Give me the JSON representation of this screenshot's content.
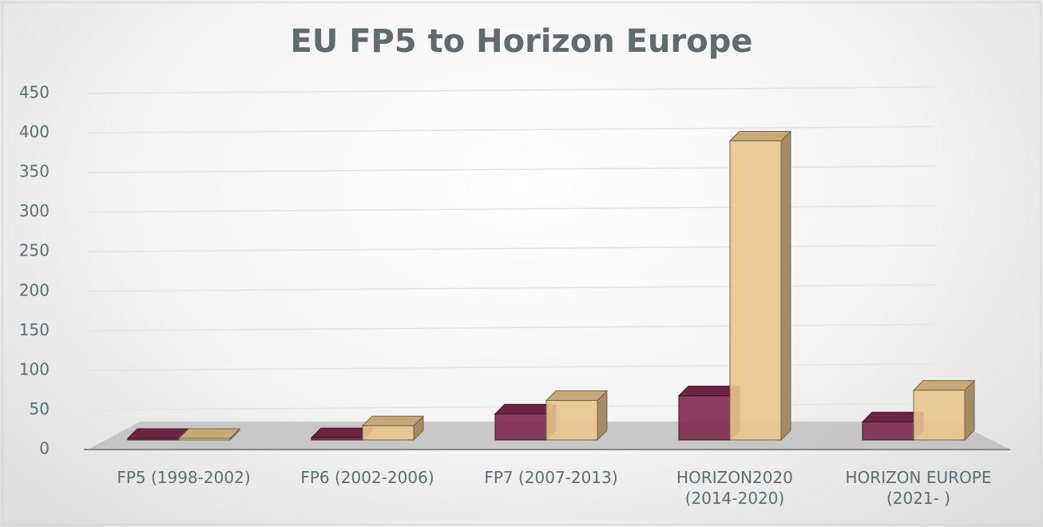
{
  "chart_data": {
    "type": "bar3d",
    "title": "EU FP5 to Horizon Europe",
    "categories": [
      "FP5 (1998-2002)",
      "FP6 (2002-2006)",
      "FP7 (2007-2013)",
      "HORIZON2020 (2014-2020)",
      "HORIZON EUROPE (2021- )"
    ],
    "series": [
      {
        "color": "#7d2a4c",
        "values": [
          1,
          15,
          45,
          68,
          35
        ]
      },
      {
        "color": "#e9c78c",
        "values": [
          1,
          30,
          62,
          390,
          75
        ]
      }
    ],
    "ylim": [
      0,
      450
    ],
    "yticks": [
      0,
      50,
      100,
      150,
      200,
      250,
      300,
      350,
      400,
      450
    ],
    "grid": true
  }
}
